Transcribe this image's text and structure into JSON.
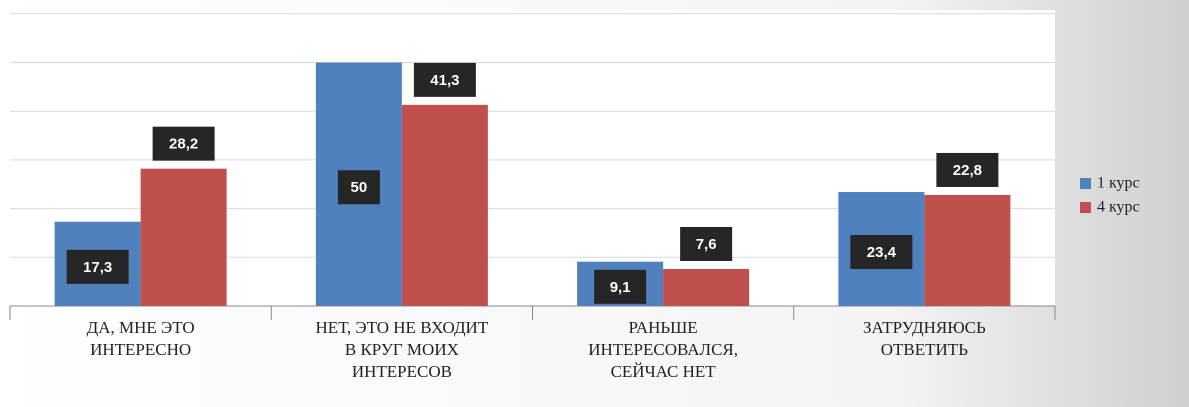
{
  "chart_data": {
    "type": "bar",
    "categories": [
      [
        "ДА, МНЕ ЭТО",
        "ИНТЕРЕСНО"
      ],
      [
        "НЕТ, ЭТО НЕ ВХОДИТ",
        "В КРУГ МОИХ",
        "ИНТЕРЕСОВ"
      ],
      [
        "РАНЬШЕ",
        "ИНТЕРЕСОВАЛСЯ,",
        "СЕЙЧАС НЕТ"
      ],
      [
        "ЗАТРУДНЯЮСЬ",
        "ОТВЕТИТЬ"
      ]
    ],
    "series": [
      {
        "name": "1 курс",
        "color": "#4f81bd",
        "values": [
          17.3,
          50,
          9.1,
          23.4
        ],
        "value_labels": [
          "17,3",
          "50",
          "9,1",
          "23,4"
        ]
      },
      {
        "name": "4 курс",
        "color": "#c0504d",
        "values": [
          28.2,
          41.3,
          7.6,
          22.8
        ],
        "value_labels": [
          "28,2",
          "41,3",
          "7,6",
          "22,8"
        ]
      }
    ],
    "ylim": [
      0,
      60
    ],
    "yticks": [
      0,
      10,
      20,
      30,
      40,
      50,
      60
    ],
    "grid": true,
    "legend": "right"
  }
}
